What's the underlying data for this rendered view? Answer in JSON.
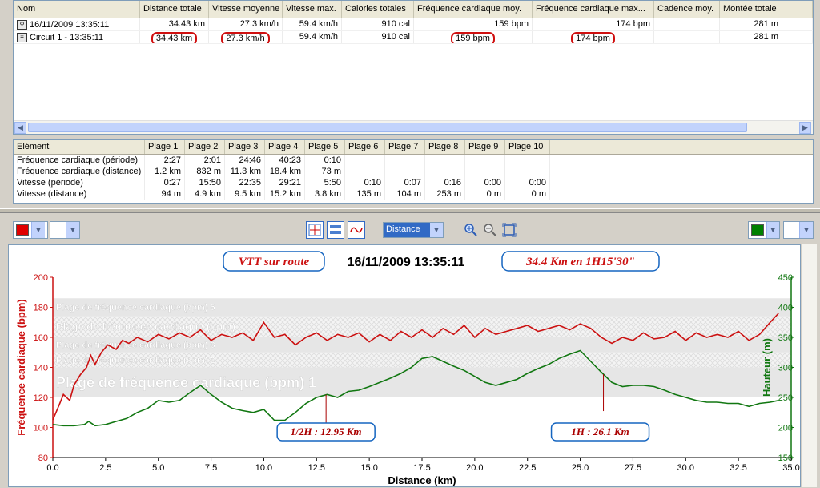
{
  "activities": {
    "columns": [
      {
        "label": "Nom",
        "w": 158
      },
      {
        "label": "Distance totale",
        "w": 86
      },
      {
        "label": "Vitesse moyenne",
        "w": 92
      },
      {
        "label": "Vitesse max.",
        "w": 74
      },
      {
        "label": "Calories totales",
        "w": 90
      },
      {
        "label": "Fréquence cardiaque moy.",
        "w": 148
      },
      {
        "label": "Fréquence cardiaque max...",
        "w": 152
      },
      {
        "label": "Cadence moy.",
        "w": 82
      },
      {
        "label": "Montée totale",
        "w": 78
      },
      {
        "label": "",
        "w": 38
      }
    ],
    "rows": [
      {
        "icon": "bike-icon",
        "cells": [
          "16/11/2009 13:35:11",
          "34.43 km",
          "27.3 km/h",
          "59.4 km/h",
          "910 cal",
          "159 bpm",
          "174 bpm",
          "",
          "281 m",
          ""
        ],
        "highlight": false
      },
      {
        "icon": "lap-icon",
        "cells": [
          "Circuit 1 - 13:35:11",
          "34.43 km",
          "27.3 km/h",
          "59.4 km/h",
          "910 cal",
          "159 bpm",
          "174 bpm",
          "",
          "281 m",
          ""
        ],
        "highlight": true
      }
    ]
  },
  "zones": {
    "columns": [
      {
        "label": "Elément",
        "w": 164
      },
      {
        "label": "Plage 1",
        "w": 50
      },
      {
        "label": "Plage 2",
        "w": 50
      },
      {
        "label": "Plage 3",
        "w": 50
      },
      {
        "label": "Plage 4",
        "w": 50
      },
      {
        "label": "Plage 5",
        "w": 50
      },
      {
        "label": "Plage 6",
        "w": 50
      },
      {
        "label": "Plage 7",
        "w": 50
      },
      {
        "label": "Plage 8",
        "w": 50
      },
      {
        "label": "Plage 9",
        "w": 50
      },
      {
        "label": "Plage 10",
        "w": 56
      }
    ],
    "rows": [
      [
        "Fréquence cardiaque (période)",
        "2:27",
        "2:01",
        "24:46",
        "40:23",
        "0:10",
        "",
        "",
        "",
        "",
        ""
      ],
      [
        "Fréquence cardiaque (distance)",
        "1.2 km",
        "832 m",
        "11.3 km",
        "18.4 km",
        "73 m",
        "",
        "",
        "",
        "",
        ""
      ],
      [
        "Vitesse (période)",
        "0:27",
        "15:50",
        "22:35",
        "29:21",
        "5:50",
        "0:10",
        "0:07",
        "0:16",
        "0:00",
        "0:00"
      ],
      [
        "Vitesse (distance)",
        "94 m",
        "4.9 km",
        "9.5 km",
        "15.2 km",
        "3.8 km",
        "135 m",
        "104 m",
        "253 m",
        "0 m",
        "0 m"
      ]
    ]
  },
  "toolbar": {
    "x_axis_value": "Distance",
    "left_color": "#e00000",
    "right_color": "#008000"
  },
  "chart_data": {
    "type": "line",
    "title_left": "VTT sur route",
    "title_center": "16/11/2009 13:35:11",
    "title_right": "34.4 Km en 1H15'30\"",
    "xlabel": "Distance (km)",
    "ylabel_left": "Fréquence cardiaque (bpm)",
    "ylabel_right": "Hauteur (m)",
    "xlim": [
      0,
      35
    ],
    "ylim_left": [
      80,
      200
    ],
    "ylim_right": [
      150,
      450
    ],
    "x_ticks": [
      "0.0",
      "2.5",
      "5.0",
      "7.5",
      "10.0",
      "12.5",
      "15.0",
      "17.5",
      "20.0",
      "22.5",
      "25.0",
      "27.5",
      "30.0",
      "32.5",
      "35.0"
    ],
    "y_left_ticks": [
      "80",
      "100",
      "120",
      "140",
      "160",
      "180",
      "200"
    ],
    "y_right_ticks": [
      "150",
      "200",
      "250",
      "300",
      "350",
      "400",
      "450"
    ],
    "zones": [
      {
        "label": "Plage de fréquence cardiaque (bpm) 1",
        "from": 120,
        "to": 140,
        "size": "big"
      },
      {
        "label": "Plage de fréquence cardiaque (bpm) 2",
        "from": 140,
        "to": 150,
        "size": "small"
      },
      {
        "label": "Plage de fréquence cardiaque (bpm) 3",
        "from": 150,
        "to": 160,
        "size": "small"
      },
      {
        "label": "Plage de fréquence cardiaque (bpm)",
        "from": 160,
        "to": 174,
        "size": "mid"
      },
      {
        "label": "Plage de fréquence cardiaque (bpm) 5",
        "from": 174,
        "to": 186,
        "size": "small"
      }
    ],
    "annotations": [
      {
        "text": "1/2H : 12.95 Km",
        "x": 12.95
      },
      {
        "text": "1H : 26.1 Km",
        "x": 26.1
      }
    ],
    "series": [
      {
        "name": "Fréquence cardiaque (bpm)",
        "color": "#cc1111",
        "axis": "left",
        "x": [
          0,
          0.3,
          0.5,
          0.8,
          1.0,
          1.3,
          1.6,
          1.8,
          2.0,
          2.3,
          2.6,
          3.0,
          3.3,
          3.6,
          4.0,
          4.5,
          5.0,
          5.5,
          6.0,
          6.5,
          7.0,
          7.5,
          8.0,
          8.5,
          9.0,
          9.5,
          10.0,
          10.5,
          11.0,
          11.5,
          12.0,
          12.5,
          13.0,
          13.5,
          14.0,
          14.5,
          15.0,
          15.5,
          16.0,
          16.5,
          17.0,
          17.5,
          18.0,
          18.5,
          19.0,
          19.5,
          20.0,
          20.5,
          21.0,
          21.5,
          22.0,
          22.5,
          23.0,
          23.5,
          24.0,
          24.5,
          25.0,
          25.5,
          26.0,
          26.5,
          27.0,
          27.5,
          28.0,
          28.5,
          29.0,
          29.5,
          30.0,
          30.5,
          31.0,
          31.5,
          32.0,
          32.5,
          33.0,
          33.5,
          34.0,
          34.4
        ],
        "values": [
          105,
          115,
          122,
          118,
          128,
          135,
          140,
          148,
          142,
          150,
          155,
          152,
          158,
          156,
          160,
          157,
          162,
          159,
          163,
          160,
          165,
          158,
          162,
          160,
          163,
          158,
          170,
          160,
          162,
          155,
          160,
          163,
          158,
          162,
          160,
          163,
          157,
          162,
          158,
          164,
          160,
          165,
          160,
          166,
          162,
          168,
          160,
          166,
          162,
          164,
          166,
          168,
          164,
          166,
          168,
          165,
          169,
          166,
          160,
          156,
          160,
          158,
          163,
          159,
          160,
          164,
          158,
          163,
          160,
          162,
          160,
          164,
          158,
          162,
          170,
          176
        ]
      },
      {
        "name": "Hauteur (m)",
        "color": "#117711",
        "axis": "right",
        "x": [
          0,
          0.5,
          1.0,
          1.5,
          1.7,
          2.0,
          2.5,
          3.0,
          3.5,
          4.0,
          4.5,
          5.0,
          5.5,
          6.0,
          6.5,
          7.0,
          7.5,
          8.0,
          8.5,
          9.0,
          9.5,
          10.0,
          10.5,
          11.0,
          11.5,
          12.0,
          12.5,
          13.0,
          13.5,
          14.0,
          14.5,
          15.0,
          15.5,
          16.0,
          16.5,
          17.0,
          17.5,
          18.0,
          18.5,
          19.0,
          19.5,
          20.0,
          20.5,
          21.0,
          21.5,
          22.0,
          22.5,
          23.0,
          23.5,
          24.0,
          24.5,
          25.0,
          25.5,
          26.0,
          26.5,
          27.0,
          27.5,
          28.0,
          28.5,
          29.0,
          29.5,
          30.0,
          30.5,
          31.0,
          31.5,
          32.0,
          32.5,
          33.0,
          33.5,
          34.0,
          34.4
        ],
        "values": [
          205,
          203,
          203,
          205,
          210,
          203,
          205,
          210,
          215,
          225,
          232,
          245,
          242,
          245,
          258,
          270,
          255,
          242,
          232,
          228,
          225,
          230,
          212,
          212,
          225,
          240,
          250,
          255,
          250,
          260,
          262,
          268,
          275,
          282,
          290,
          300,
          315,
          318,
          310,
          302,
          295,
          285,
          275,
          270,
          275,
          280,
          290,
          298,
          305,
          315,
          322,
          328,
          310,
          292,
          275,
          268,
          270,
          270,
          268,
          262,
          255,
          250,
          245,
          242,
          242,
          240,
          240,
          235,
          240,
          242,
          245
        ]
      }
    ]
  }
}
